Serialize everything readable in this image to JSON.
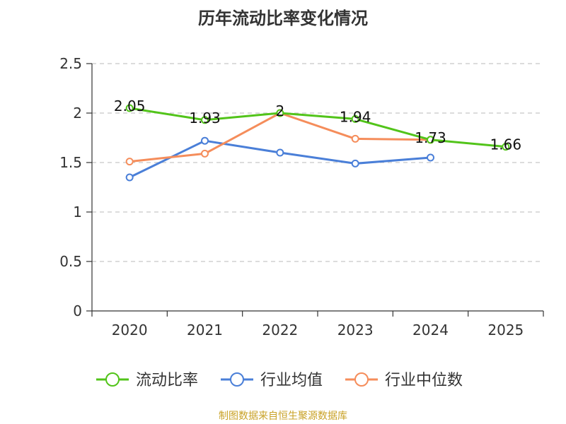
{
  "chart_data": {
    "type": "line",
    "title": "历年流动比率变化情况",
    "categories": [
      "2020",
      "2021",
      "2022",
      "2023",
      "2024",
      "2025"
    ],
    "ylim": [
      0,
      2.5
    ],
    "yticks": [
      "0",
      "0.5",
      "1",
      "1.5",
      "2",
      "2.5"
    ],
    "grid": true,
    "legend_position": "bottom",
    "series": [
      {
        "name": "流动比率",
        "color": "#52c41a",
        "values": [
          2.05,
          1.93,
          2.0,
          1.94,
          1.73,
          1.66
        ],
        "labels": [
          "2.05",
          "1.93",
          "2",
          "1.94",
          "1.73",
          "1.66"
        ]
      },
      {
        "name": "行业均值",
        "color": "#4a7fd8",
        "values": [
          1.35,
          1.72,
          1.6,
          1.49,
          1.55,
          null
        ]
      },
      {
        "name": "行业中位数",
        "color": "#f58d5b",
        "values": [
          1.51,
          1.59,
          2.0,
          1.74,
          1.73,
          null
        ]
      }
    ],
    "source": "制图数据来自恒生聚源数据库"
  }
}
